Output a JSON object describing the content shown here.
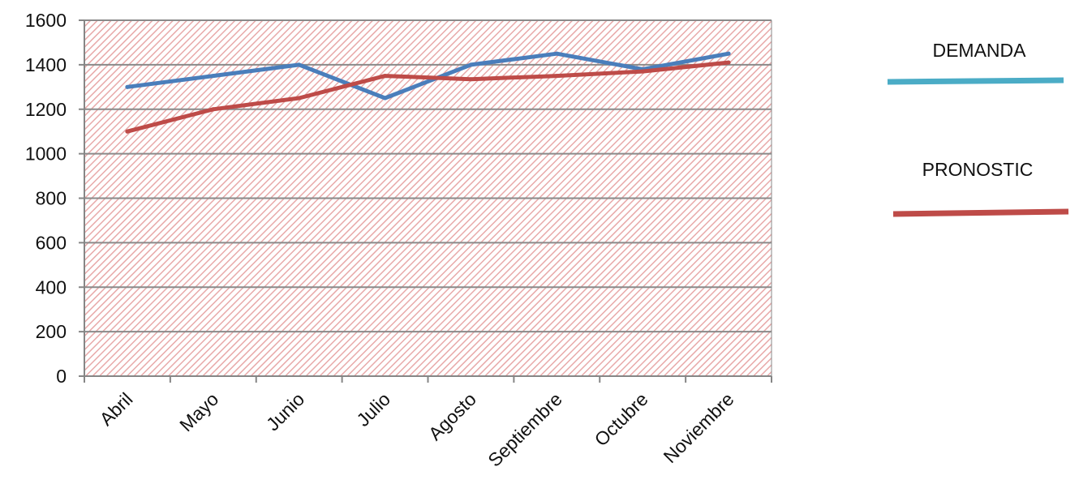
{
  "chart_data": {
    "type": "line",
    "title": "",
    "xlabel": "",
    "ylabel": "",
    "categories": [
      "Abril",
      "Mayo",
      "Junio",
      "Julio",
      "Agosto",
      "Septiembre",
      "Octubre",
      "Noviembre"
    ],
    "ylim": [
      0,
      1600
    ],
    "yticks": [
      0,
      200,
      400,
      600,
      800,
      1000,
      1200,
      1400,
      1600
    ],
    "ytick_labels": [
      "0",
      "200",
      "400",
      "600",
      "800",
      "1000",
      "1200",
      "1400",
      "1600"
    ],
    "grid": true,
    "plot_background": "red diagonal hatch",
    "legend_position": "right",
    "series": [
      {
        "name": "DEMANDA",
        "values": [
          1300,
          1350,
          1400,
          1250,
          1400,
          1450,
          1380,
          1450
        ],
        "color": "#4a7ebb",
        "legend_color": "#4bacc6"
      },
      {
        "name": "PRONOSTIC",
        "values": [
          1100,
          1200,
          1250,
          1350,
          1335,
          1350,
          1370,
          1410
        ],
        "color": "#be4b48",
        "legend_color": "#be4b48"
      }
    ]
  },
  "colors": {
    "hatch": "#e8a9a9",
    "gridline": "#8a8a8a",
    "axis": "#868686"
  }
}
